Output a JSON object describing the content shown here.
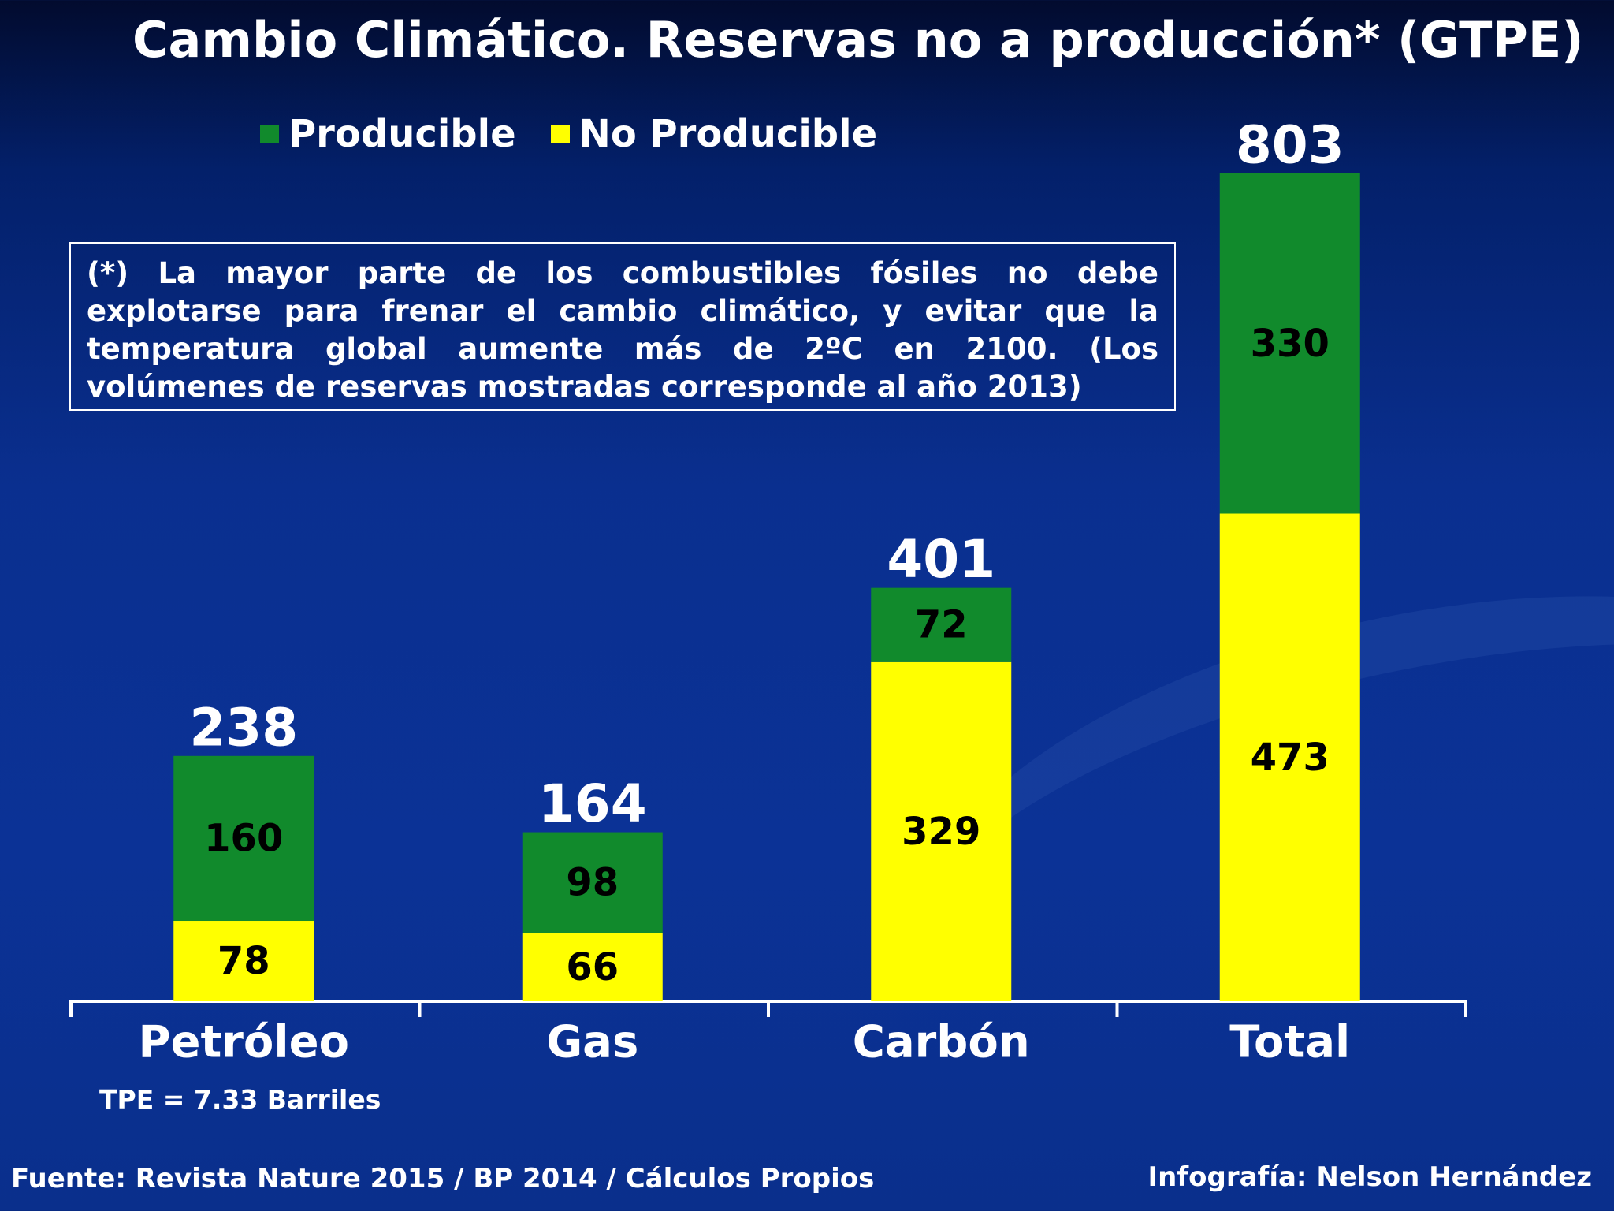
{
  "chart_data": {
    "type": "bar",
    "stacked": true,
    "title": "Cambio Climático. Reservas no a producción* (GTPE)",
    "categories": [
      "Petróleo",
      "Gas",
      "Carbón",
      "Total"
    ],
    "series": [
      {
        "name": "No Producible",
        "color": "#ffff00",
        "values": [
          78,
          66,
          329,
          473
        ]
      },
      {
        "name": "Producible",
        "color": "#118a2c",
        "values": [
          160,
          98,
          72,
          330
        ]
      }
    ],
    "totals": [
      238,
      164,
      401,
      803
    ],
    "ylim": [
      0,
      803
    ],
    "legend_position": "top"
  },
  "note": "(*) La mayor parte de los combustibles fósiles no debe explotarse para frenar el cambio climático, y evitar que la temperatura global aumente más de 2ºC en 2100. (Los volúmenes de reservas mostradas corresponde al año 2013)",
  "footnote": "TPE = 7.33 Barriles",
  "source": "Fuente:  Revista Nature 2015 / BP 2014 / Cálculos Propios",
  "credit": "Infografía: Nelson Hernández"
}
